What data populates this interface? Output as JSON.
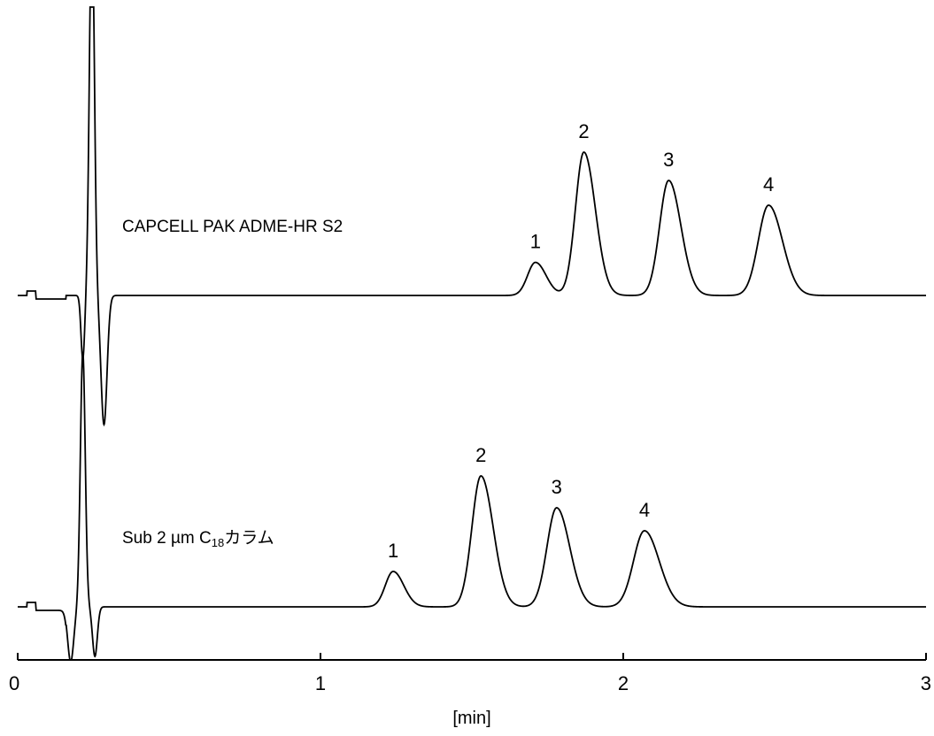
{
  "chart_data": {
    "type": "line",
    "title": "",
    "xlabel": "[min]",
    "ylabel": "",
    "xlim": [
      0,
      3
    ],
    "x_ticks": [
      "0",
      "1",
      "2",
      "3"
    ],
    "grid": false,
    "series": [
      {
        "name": "CAPCELL PAK ADME-HR S2",
        "name_parts": [
          "CAPCELL PAK ADME-HR S2"
        ],
        "baseline": 0,
        "noise": [
          {
            "t": 0.245,
            "a": 22.0,
            "w": 0.008
          },
          {
            "t": 0.215,
            "a": -3.6,
            "w": 0.006
          },
          {
            "t": 0.285,
            "a": -7.3,
            "w": 0.01
          }
        ],
        "peaks": [
          {
            "label": "1",
            "t": 1.71,
            "height": 1.87,
            "width": 0.026
          },
          {
            "label": "2",
            "t": 1.87,
            "height": 8.1,
            "width": 0.028
          },
          {
            "label": "3",
            "t": 2.15,
            "height": 6.5,
            "width": 0.03
          },
          {
            "label": "4",
            "t": 2.48,
            "height": 5.1,
            "width": 0.034
          }
        ]
      },
      {
        "name": "Sub 2 µm C18カラム",
        "name_parts": [
          "Sub 2 ",
          "µ",
          "m C",
          "18",
          "カラム"
        ],
        "baseline": 0,
        "noise": [
          {
            "t": 0.215,
            "a": 14.4,
            "w": 0.008
          },
          {
            "t": 0.175,
            "a": -3.1,
            "w": 0.01
          },
          {
            "t": 0.255,
            "a": -2.8,
            "w": 0.008
          }
        ],
        "peaks": [
          {
            "label": "1",
            "t": 1.24,
            "height": 2.0,
            "width": 0.026
          },
          {
            "label": "2",
            "t": 1.53,
            "height": 7.4,
            "width": 0.03
          },
          {
            "label": "3",
            "t": 1.78,
            "height": 5.6,
            "width": 0.032
          },
          {
            "label": "4",
            "t": 2.07,
            "height": 4.3,
            "width": 0.036
          }
        ]
      }
    ]
  }
}
